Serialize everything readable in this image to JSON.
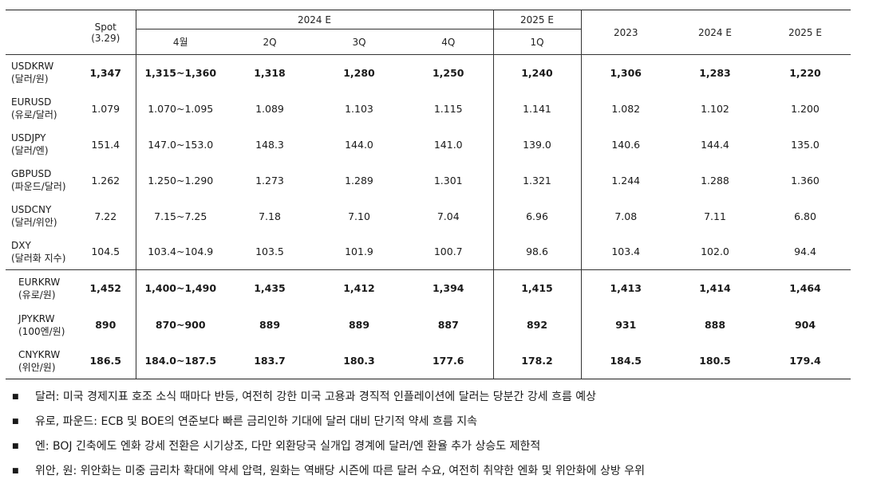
{
  "header": {
    "spot_label": "Spot",
    "spot_date": "(3.29)",
    "group_2024": "2024 E",
    "group_2025": "2025 E",
    "sub_columns": [
      "4월",
      "2Q",
      "3Q",
      "4Q",
      "1Q"
    ],
    "annual_columns": [
      "2023",
      "2024 E",
      "2025 E"
    ]
  },
  "rows": [
    {
      "name": "USDKRW",
      "sub": "(달러/원)",
      "values": [
        "1,347",
        "1,315~1,360",
        "1,318",
        "1,280",
        "1,250",
        "1,240",
        "1,306",
        "1,283",
        "1,220"
      ]
    },
    {
      "name": "EURUSD",
      "sub": "(유로/달러)",
      "values": [
        "1.079",
        "1.070~1.095",
        "1.089",
        "1.103",
        "1.115",
        "1.141",
        "1.082",
        "1.102",
        "1.200"
      ]
    },
    {
      "name": "USDJPY",
      "sub": "(달러/엔)",
      "values": [
        "151.4",
        "147.0~153.0",
        "148.3",
        "144.0",
        "141.0",
        "139.0",
        "140.6",
        "144.4",
        "135.0"
      ]
    },
    {
      "name": "GBPUSD",
      "sub": "(파운드/달러)",
      "values": [
        "1.262",
        "1.250~1.290",
        "1.273",
        "1.289",
        "1.301",
        "1.321",
        "1.244",
        "1.288",
        "1.360"
      ]
    },
    {
      "name": "USDCNY",
      "sub": "(달러/위안)",
      "values": [
        "7.22",
        "7.15~7.25",
        "7.18",
        "7.10",
        "7.04",
        "6.96",
        "7.08",
        "7.11",
        "6.80"
      ]
    },
    {
      "name": "DXY",
      "sub": "(달러화 지수)",
      "values": [
        "104.5",
        "103.4~104.9",
        "103.5",
        "101.9",
        "100.7",
        "98.6",
        "103.4",
        "102.0",
        "94.4"
      ]
    },
    {
      "name": "EURKRW",
      "sub": "(유로/원)",
      "values": [
        "1,452",
        "1,400~1,490",
        "1,435",
        "1,412",
        "1,394",
        "1,415",
        "1,413",
        "1,414",
        "1,464"
      ]
    },
    {
      "name": "JPYKRW",
      "sub": "(100엔/원)",
      "values": [
        "890",
        "870~900",
        "889",
        "889",
        "887",
        "892",
        "931",
        "888",
        "904"
      ]
    },
    {
      "name": "CNYKRW",
      "sub": "(위안/원)",
      "values": [
        "186.5",
        "184.0~187.5",
        "183.7",
        "180.3",
        "177.6",
        "178.2",
        "184.5",
        "180.5",
        "179.4"
      ]
    }
  ],
  "notes": [
    "달러: 미국 경제지표 호조 소식 때마다 반등, 여전히 강한 미국 고용과 경직적 인플레이션에 달러는 당분간 강세 흐름 예상",
    "유로, 파운드: ECB 및 BOE의 연준보다 빠른 금리인하 기대에 달러 대비 단기적 약세 흐름 지속",
    "엔: BOJ 긴축에도 엔화 강세 전환은 시기상조, 다만 외환당국 실개입 경계에 달러/엔 환율 추가 상승도 제한적",
    "위안, 원: 위안화는 미중 금리차 확대에 약세 압력, 원화는 역배당 시즌에 따른 달러 수요, 여전히 취약한 엔화 및 위안화에 상방 우위"
  ]
}
